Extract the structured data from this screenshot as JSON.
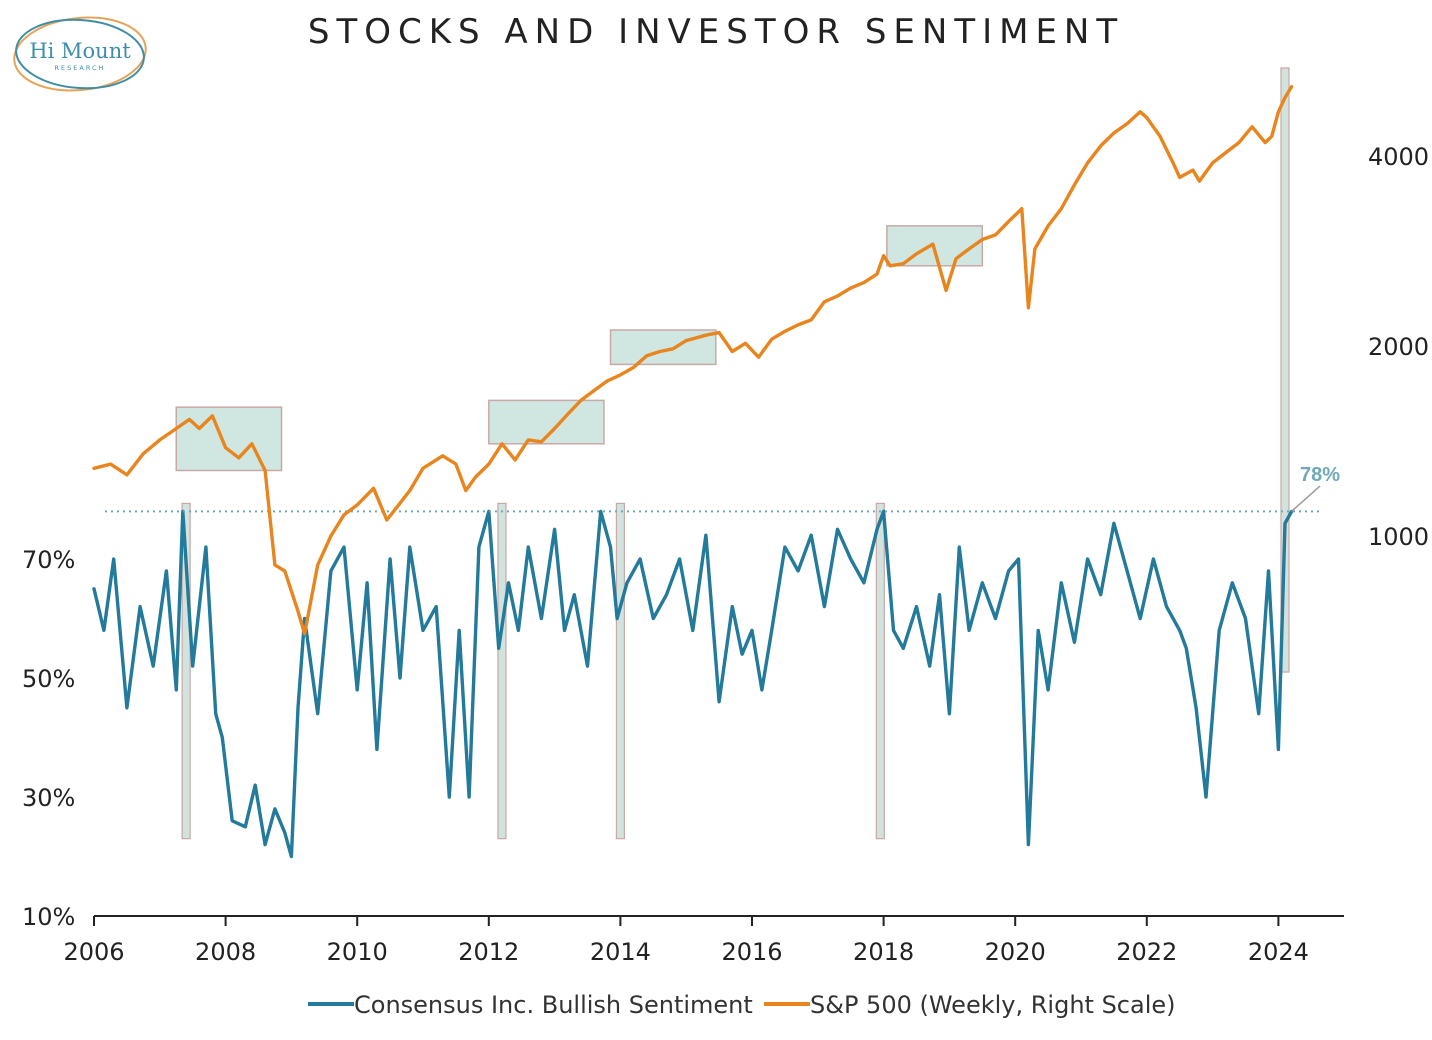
{
  "logo": {
    "name": "Hi Mount",
    "tagline": "RESEARCH"
  },
  "chart_data": {
    "type": "line",
    "title": "STOCKS AND INVESTOR SENTIMENT",
    "xlabel": "",
    "ylabel": "",
    "xlim": [
      2006,
      2025
    ],
    "x_ticks": [
      "2006",
      "2008",
      "2010",
      "2012",
      "2014",
      "2016",
      "2018",
      "2020",
      "2022",
      "2024"
    ],
    "y_left": {
      "ticks": [
        "10%",
        "30%",
        "50%",
        "70%"
      ],
      "values": [
        10,
        30,
        50,
        70
      ],
      "lim": [
        10,
        78
      ]
    },
    "y_right": {
      "ticks": [
        "1000",
        "2000",
        "4000"
      ],
      "values": [
        1000,
        2000,
        4000
      ],
      "scale": "log"
    },
    "grid": false,
    "legend_position": "bottom",
    "colors": {
      "sentiment": "#237a9a",
      "sp500": "#e8851e",
      "highlight_fill": "#bfdfd6",
      "highlight_edge": "#c9a8a8",
      "reference": "#6fa9b8"
    },
    "series": [
      {
        "name": "Consensus Inc. Bullish Sentiment",
        "axis": "left",
        "x": [
          2006.0,
          2006.15,
          2006.3,
          2006.5,
          2006.7,
          2006.9,
          2007.1,
          2007.25,
          2007.35,
          2007.5,
          2007.7,
          2007.85,
          2007.95,
          2008.1,
          2008.3,
          2008.45,
          2008.6,
          2008.75,
          2008.9,
          2009.0,
          2009.1,
          2009.2,
          2009.4,
          2009.6,
          2009.8,
          2010.0,
          2010.15,
          2010.3,
          2010.5,
          2010.65,
          2010.8,
          2011.0,
          2011.2,
          2011.4,
          2011.55,
          2011.7,
          2011.85,
          2012.0,
          2012.15,
          2012.3,
          2012.45,
          2012.6,
          2012.8,
          2013.0,
          2013.15,
          2013.3,
          2013.5,
          2013.7,
          2013.85,
          2013.95,
          2014.1,
          2014.3,
          2014.5,
          2014.7,
          2014.9,
          2015.1,
          2015.3,
          2015.5,
          2015.7,
          2015.85,
          2016.0,
          2016.15,
          2016.3,
          2016.5,
          2016.7,
          2016.9,
          2017.1,
          2017.3,
          2017.5,
          2017.7,
          2017.9,
          2018.0,
          2018.15,
          2018.3,
          2018.5,
          2018.7,
          2018.85,
          2019.0,
          2019.15,
          2019.3,
          2019.5,
          2019.7,
          2019.9,
          2020.05,
          2020.2,
          2020.35,
          2020.5,
          2020.7,
          2020.9,
          2021.1,
          2021.3,
          2021.5,
          2021.7,
          2021.9,
          2022.1,
          2022.3,
          2022.5,
          2022.6,
          2022.75,
          2022.9,
          2023.1,
          2023.3,
          2023.5,
          2023.7,
          2023.85,
          2024.0,
          2024.1,
          2024.2
        ],
        "values": [
          65,
          58,
          70,
          45,
          62,
          52,
          68,
          48,
          78,
          52,
          72,
          44,
          40,
          26,
          25,
          32,
          22,
          28,
          24,
          20,
          45,
          60,
          44,
          68,
          72,
          48,
          66,
          38,
          70,
          50,
          72,
          58,
          62,
          30,
          58,
          30,
          72,
          78,
          55,
          66,
          58,
          72,
          60,
          75,
          58,
          64,
          52,
          78,
          72,
          60,
          66,
          70,
          60,
          64,
          70,
          58,
          74,
          46,
          62,
          54,
          58,
          48,
          58,
          72,
          68,
          74,
          62,
          75,
          70,
          66,
          75,
          78,
          58,
          55,
          62,
          52,
          64,
          44,
          72,
          58,
          66,
          60,
          68,
          70,
          22,
          58,
          48,
          66,
          56,
          70,
          64,
          76,
          68,
          60,
          70,
          62,
          58,
          55,
          45,
          30,
          58,
          66,
          60,
          44,
          68,
          38,
          76,
          78
        ],
        "reference_value": 78,
        "reference_label": "78%"
      },
      {
        "name": "S&P 500 (Weekly, Right Scale)",
        "axis": "right",
        "x": [
          2006.0,
          2006.25,
          2006.5,
          2006.75,
          2007.0,
          2007.25,
          2007.45,
          2007.6,
          2007.8,
          2008.0,
          2008.2,
          2008.4,
          2008.6,
          2008.75,
          2008.9,
          2009.1,
          2009.2,
          2009.4,
          2009.6,
          2009.8,
          2010.0,
          2010.25,
          2010.45,
          2010.6,
          2010.8,
          2011.0,
          2011.3,
          2011.5,
          2011.65,
          2011.8,
          2012.0,
          2012.2,
          2012.4,
          2012.6,
          2012.8,
          2013.0,
          2013.2,
          2013.4,
          2013.6,
          2013.8,
          2014.0,
          2014.2,
          2014.4,
          2014.6,
          2014.8,
          2015.0,
          2015.3,
          2015.5,
          2015.7,
          2015.9,
          2016.1,
          2016.3,
          2016.5,
          2016.7,
          2016.9,
          2017.1,
          2017.3,
          2017.5,
          2017.7,
          2017.9,
          2018.0,
          2018.1,
          2018.3,
          2018.5,
          2018.75,
          2018.95,
          2019.1,
          2019.3,
          2019.5,
          2019.7,
          2019.9,
          2020.1,
          2020.2,
          2020.3,
          2020.5,
          2020.7,
          2020.9,
          2021.1,
          2021.3,
          2021.5,
          2021.7,
          2021.9,
          2022.0,
          2022.2,
          2022.4,
          2022.5,
          2022.7,
          2022.8,
          2023.0,
          2023.2,
          2023.4,
          2023.6,
          2023.8,
          2023.9,
          2024.0,
          2024.1,
          2024.2
        ],
        "values": [
          1280,
          1300,
          1250,
          1350,
          1420,
          1480,
          1530,
          1480,
          1550,
          1380,
          1330,
          1400,
          1270,
          900,
          880,
          760,
          700,
          900,
          1000,
          1080,
          1120,
          1190,
          1060,
          1110,
          1180,
          1280,
          1340,
          1300,
          1180,
          1240,
          1300,
          1400,
          1320,
          1420,
          1410,
          1480,
          1560,
          1640,
          1700,
          1760,
          1800,
          1850,
          1930,
          1960,
          1980,
          2040,
          2080,
          2100,
          1960,
          2020,
          1920,
          2050,
          2110,
          2160,
          2200,
          2350,
          2400,
          2470,
          2520,
          2600,
          2780,
          2680,
          2700,
          2800,
          2900,
          2450,
          2750,
          2850,
          2950,
          3000,
          3150,
          3300,
          2300,
          2850,
          3100,
          3300,
          3600,
          3900,
          4150,
          4350,
          4500,
          4700,
          4600,
          4300,
          3900,
          3700,
          3800,
          3650,
          3900,
          4050,
          4200,
          4450,
          4200,
          4300,
          4700,
          4950,
          5150
        ]
      }
    ],
    "highlight_boxes": [
      {
        "x": [
          2007.25,
          2008.85
        ],
        "y_right": [
          1270,
          1600
        ]
      },
      {
        "x": [
          2012.0,
          2013.75
        ],
        "y_right": [
          1400,
          1640
        ]
      },
      {
        "x": [
          2013.85,
          2015.45
        ],
        "y_right": [
          1870,
          2120
        ]
      },
      {
        "x": [
          2018.05,
          2019.5
        ],
        "y_right": [
          2680,
          3100
        ]
      }
    ],
    "highlight_bars": [
      {
        "x": 2007.4,
        "y_left": [
          23,
          78
        ]
      },
      {
        "x": 2012.2,
        "y_left": [
          23,
          78
        ]
      },
      {
        "x": 2014.0,
        "y_left": [
          23,
          78
        ]
      },
      {
        "x": 2017.95,
        "y_left": [
          23,
          78
        ]
      },
      {
        "x": 2024.1,
        "y_left": [
          51,
          110
        ]
      }
    ]
  }
}
